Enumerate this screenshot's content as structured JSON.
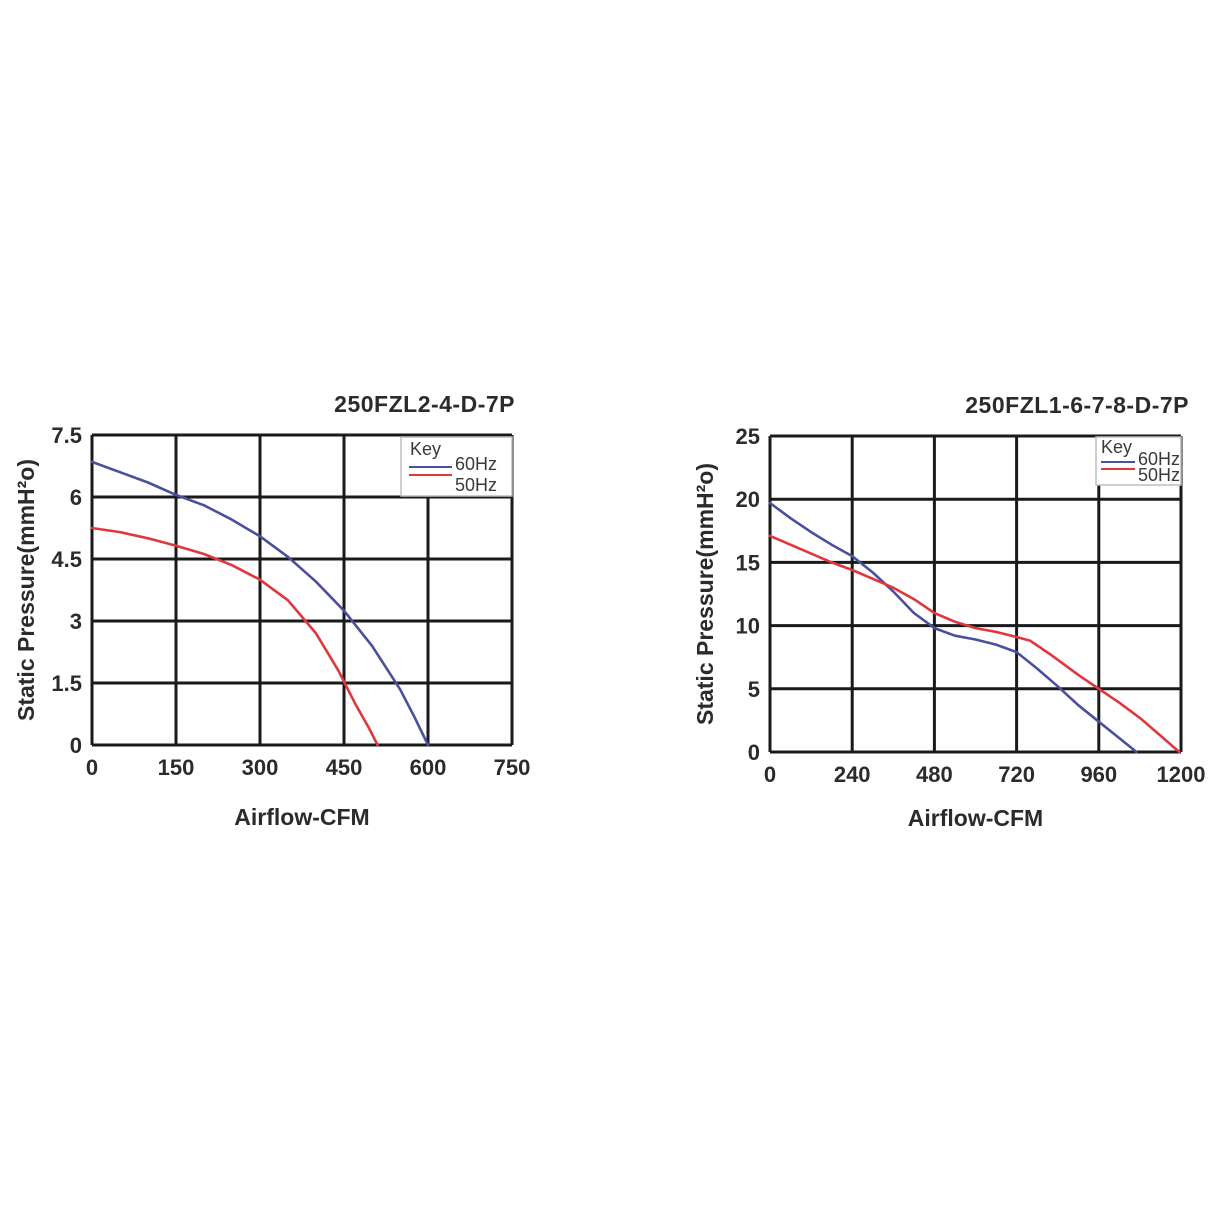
{
  "chart_data": [
    {
      "type": "line",
      "title": "250FZL2-4-D-7P",
      "xlabel": "Airflow-CFM",
      "ylabel": "Static Pressure(mmH²o)",
      "xlim": [
        0,
        750
      ],
      "ylim": [
        0,
        7.5
      ],
      "x_ticks": [
        "0",
        "150",
        "300",
        "450",
        "600",
        "750"
      ],
      "y_ticks": [
        "0",
        "1.5",
        "3",
        "4.5",
        "6",
        "7.5"
      ],
      "grid": true,
      "legend": {
        "title": "Key",
        "placement": "top-right"
      },
      "series": [
        {
          "name": "60Hz",
          "color": "#4a4f9e",
          "x": [
            0,
            50,
            100,
            150,
            200,
            250,
            300,
            350,
            400,
            450,
            500,
            550,
            575,
            600
          ],
          "y": [
            6.85,
            6.6,
            6.35,
            6.05,
            5.8,
            5.45,
            5.05,
            4.55,
            3.95,
            3.25,
            2.4,
            1.35,
            0.7,
            0
          ]
        },
        {
          "name": "50Hz",
          "color": "#e0373d",
          "x": [
            0,
            50,
            100,
            150,
            200,
            250,
            300,
            350,
            400,
            440,
            470,
            495,
            510
          ],
          "y": [
            5.25,
            5.15,
            5.0,
            4.82,
            4.62,
            4.35,
            4.0,
            3.5,
            2.7,
            1.8,
            1.0,
            0.4,
            0
          ]
        }
      ]
    },
    {
      "type": "line",
      "title": "250FZL1-6-7-8-D-7P",
      "xlabel": "Airflow-CFM",
      "ylabel": "Static Pressure(mmH²o)",
      "xlim": [
        0,
        1200
      ],
      "ylim": [
        0,
        25
      ],
      "x_ticks": [
        "0",
        "240",
        "480",
        "720",
        "960",
        "1200"
      ],
      "y_ticks": [
        "0",
        "5",
        "10",
        "15",
        "20",
        "25"
      ],
      "grid": true,
      "legend": {
        "title": "Key",
        "placement": "top-right"
      },
      "series": [
        {
          "name": "60Hz",
          "color": "#4a4f9e",
          "x": [
            0,
            60,
            120,
            180,
            240,
            300,
            360,
            420,
            480,
            540,
            600,
            660,
            720,
            780,
            840,
            900,
            960,
            1020,
            1070
          ],
          "y": [
            19.7,
            18.5,
            17.4,
            16.4,
            15.5,
            14.2,
            12.7,
            11.0,
            9.8,
            9.2,
            8.9,
            8.5,
            7.9,
            6.6,
            5.2,
            3.7,
            2.4,
            1.1,
            0
          ]
        },
        {
          "name": "50Hz",
          "color": "#e0373d",
          "x": [
            0,
            60,
            120,
            180,
            240,
            300,
            360,
            420,
            480,
            540,
            600,
            660,
            720,
            760,
            820,
            900,
            960,
            1020,
            1080,
            1140,
            1195
          ],
          "y": [
            17.1,
            16.4,
            15.7,
            15.0,
            14.4,
            13.7,
            13.0,
            12.1,
            11.0,
            10.3,
            9.8,
            9.5,
            9.1,
            8.8,
            7.7,
            6.1,
            5.0,
            3.9,
            2.7,
            1.3,
            0
          ]
        }
      ]
    }
  ]
}
